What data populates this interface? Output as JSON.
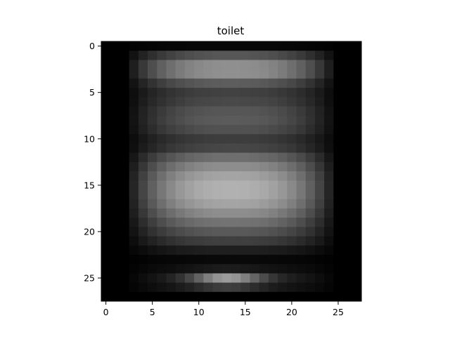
{
  "chart_data": {
    "type": "heatmap",
    "title": "toilet",
    "colormap": "gray",
    "rows": 28,
    "cols": 28,
    "value_range": [
      0,
      1
    ],
    "xticks": [
      0,
      5,
      10,
      15,
      20,
      25
    ],
    "yticks": [
      0,
      5,
      10,
      15,
      20,
      25
    ],
    "grid": false,
    "description_of_values": "mean grayscale intensity per cell (0 black, 1 white)"
  }
}
